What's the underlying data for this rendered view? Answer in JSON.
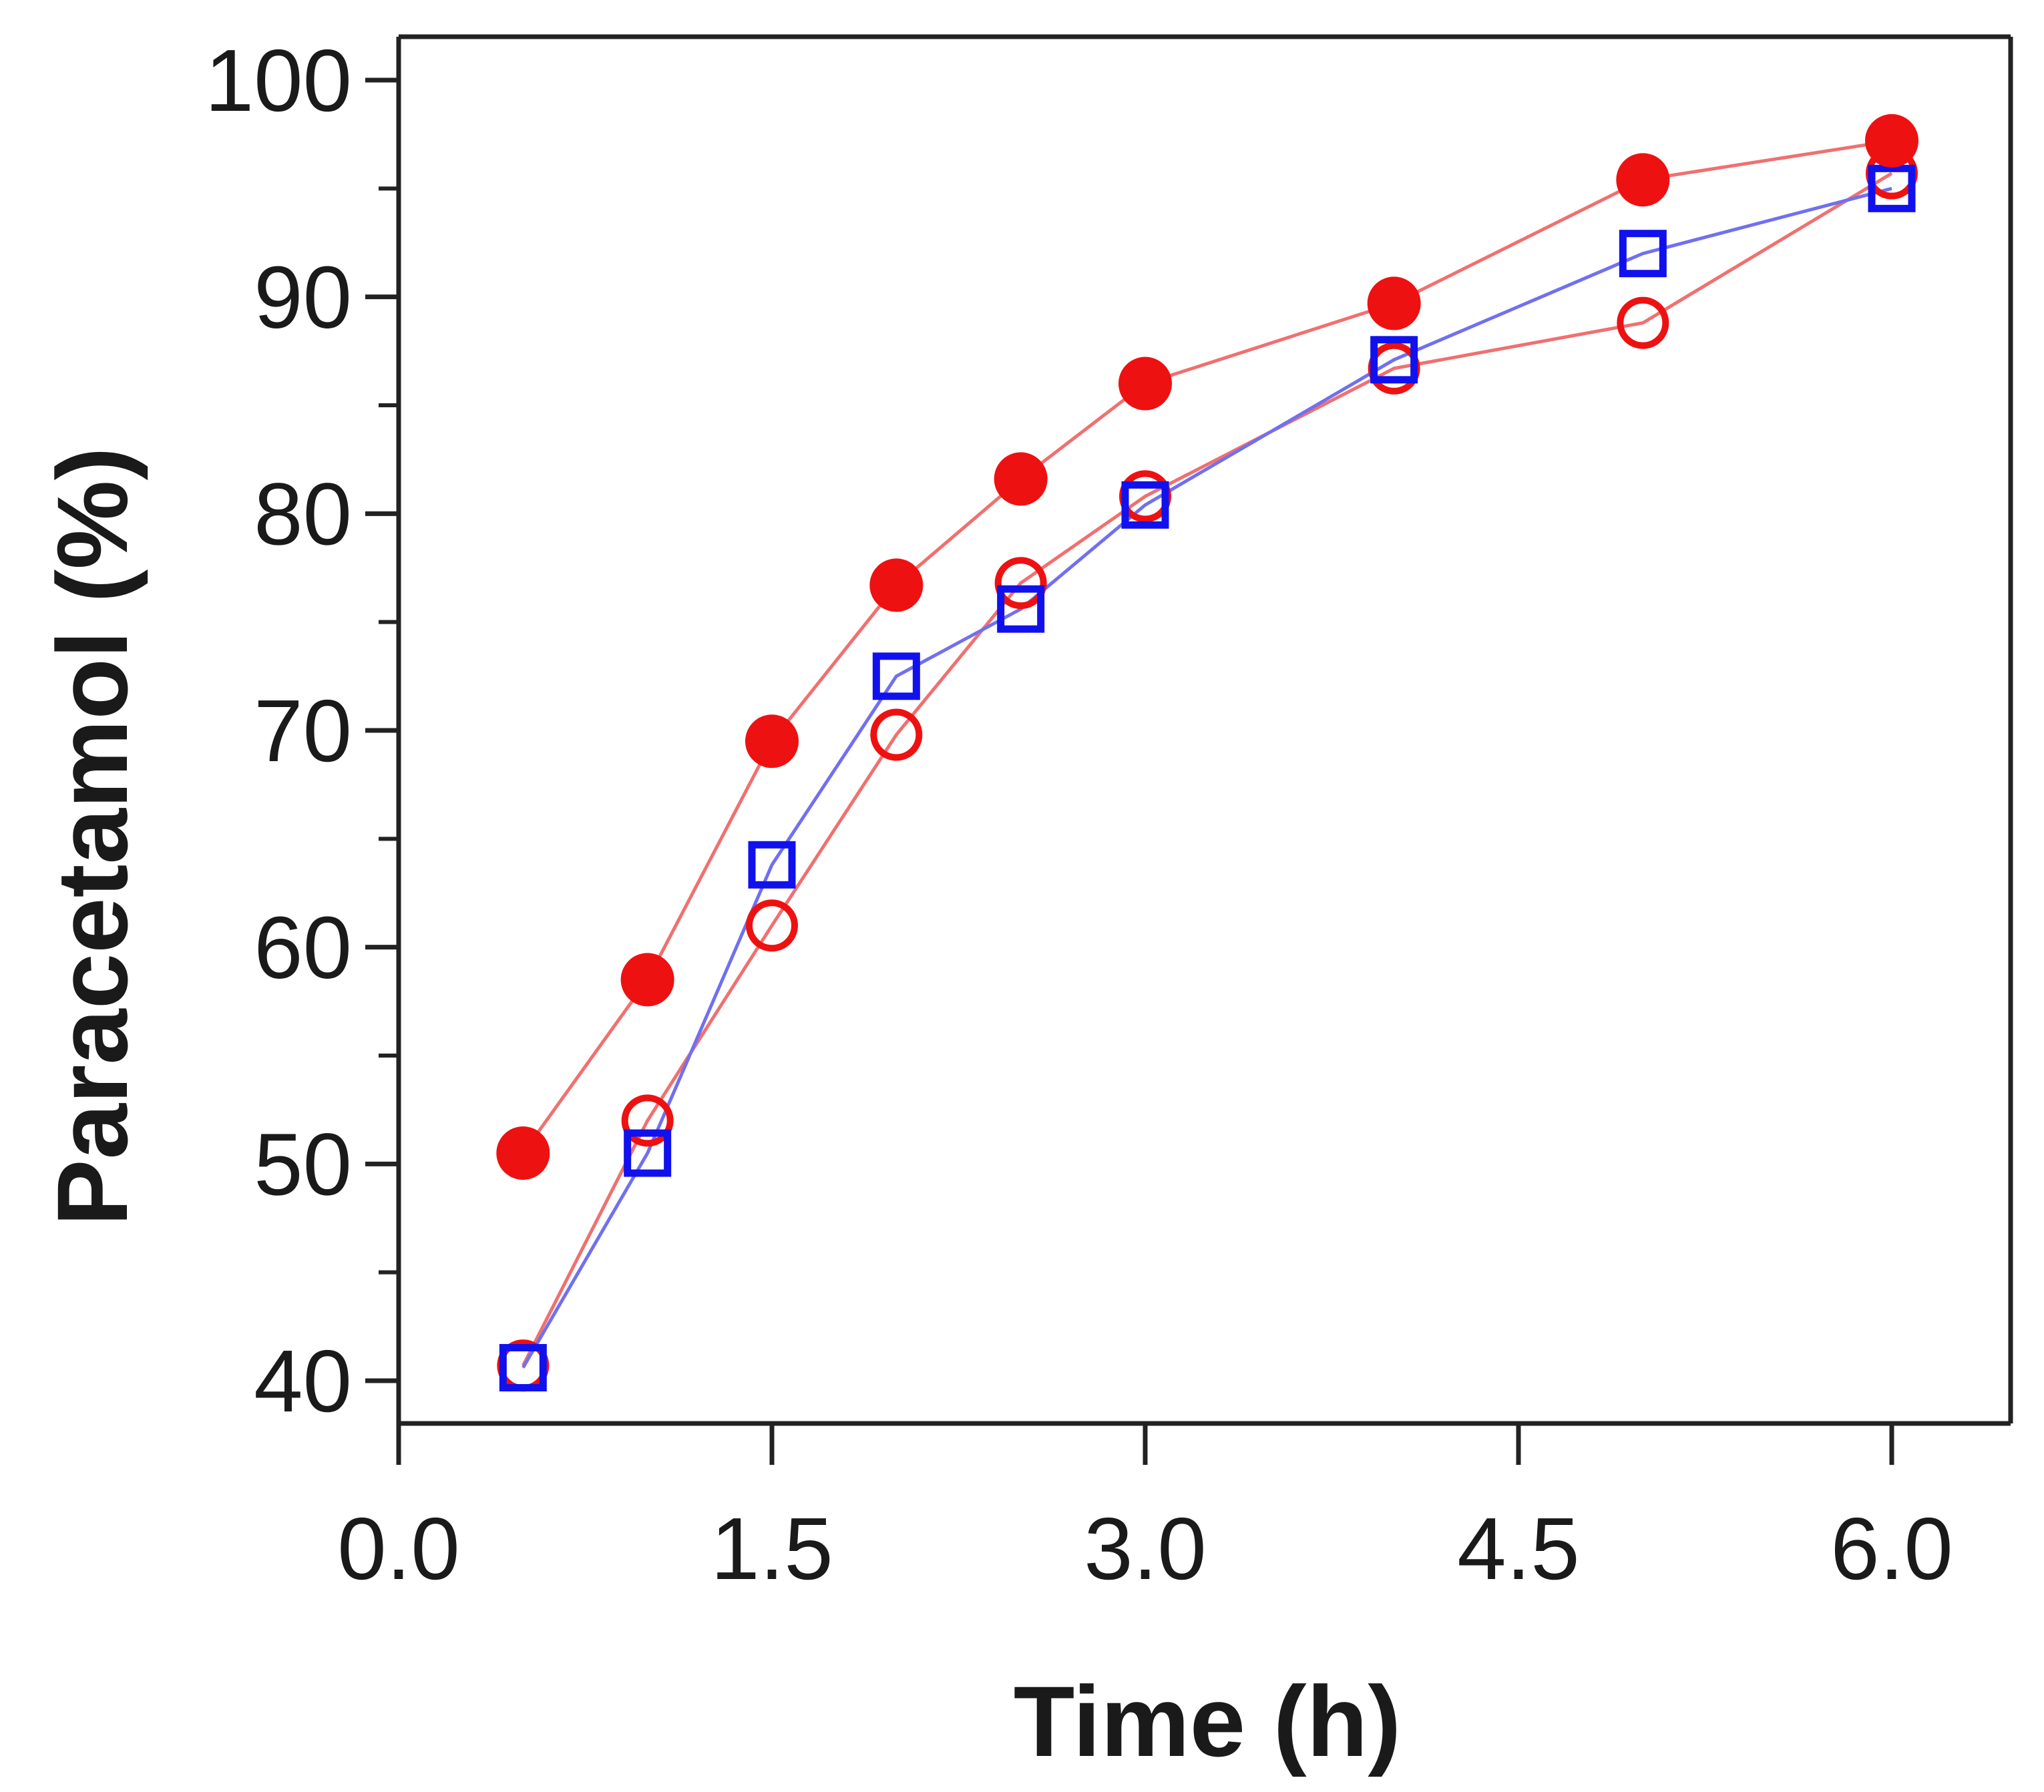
{
  "chart_data": {
    "type": "line",
    "title": "",
    "xlabel": "Time (h)",
    "ylabel": "Paracetamol (%)",
    "xlim": [
      0,
      6.5
    ],
    "ylim": [
      38,
      102
    ],
    "xticks": [
      0.0,
      1.5,
      3.0,
      4.5,
      6.0
    ],
    "xtick_labels": [
      "0.0",
      "1.5",
      "3.0",
      "4.5",
      "6.0"
    ],
    "yticks": [
      40,
      50,
      60,
      70,
      80,
      90,
      100
    ],
    "ytick_labels": [
      "40",
      "50",
      "60",
      "70",
      "80",
      "90",
      "100"
    ],
    "yminor_ticks": [
      45,
      55,
      65,
      75,
      85,
      95
    ],
    "grid": false,
    "legend": "none",
    "series": [
      {
        "name": "filled-circles",
        "marker": "circle-filled",
        "color": "#ee1111",
        "line_color": "#f07070",
        "x": [
          0.5,
          1.0,
          1.5,
          2.0,
          2.5,
          3.0,
          4.0,
          5.0,
          6.0
        ],
        "y": [
          50.5,
          58.5,
          69.5,
          76.7,
          81.6,
          86.0,
          89.7,
          95.4,
          97.2
        ]
      },
      {
        "name": "open-circles",
        "marker": "circle-open",
        "color": "#ee1111",
        "line_color": "#f07070",
        "x": [
          0.5,
          1.0,
          1.5,
          2.0,
          2.5,
          3.0,
          4.0,
          5.0,
          6.0
        ],
        "y": [
          40.7,
          52.0,
          61.0,
          69.8,
          76.8,
          80.8,
          86.7,
          88.8,
          95.7
        ]
      },
      {
        "name": "open-squares",
        "marker": "square-open",
        "color": "#1111ee",
        "line_color": "#7070f0",
        "x": [
          0.5,
          1.0,
          1.5,
          2.0,
          2.5,
          3.0,
          4.0,
          5.0,
          6.0
        ],
        "y": [
          40.6,
          50.5,
          63.8,
          72.5,
          75.6,
          80.4,
          87.1,
          92.0,
          95.0
        ]
      }
    ]
  }
}
